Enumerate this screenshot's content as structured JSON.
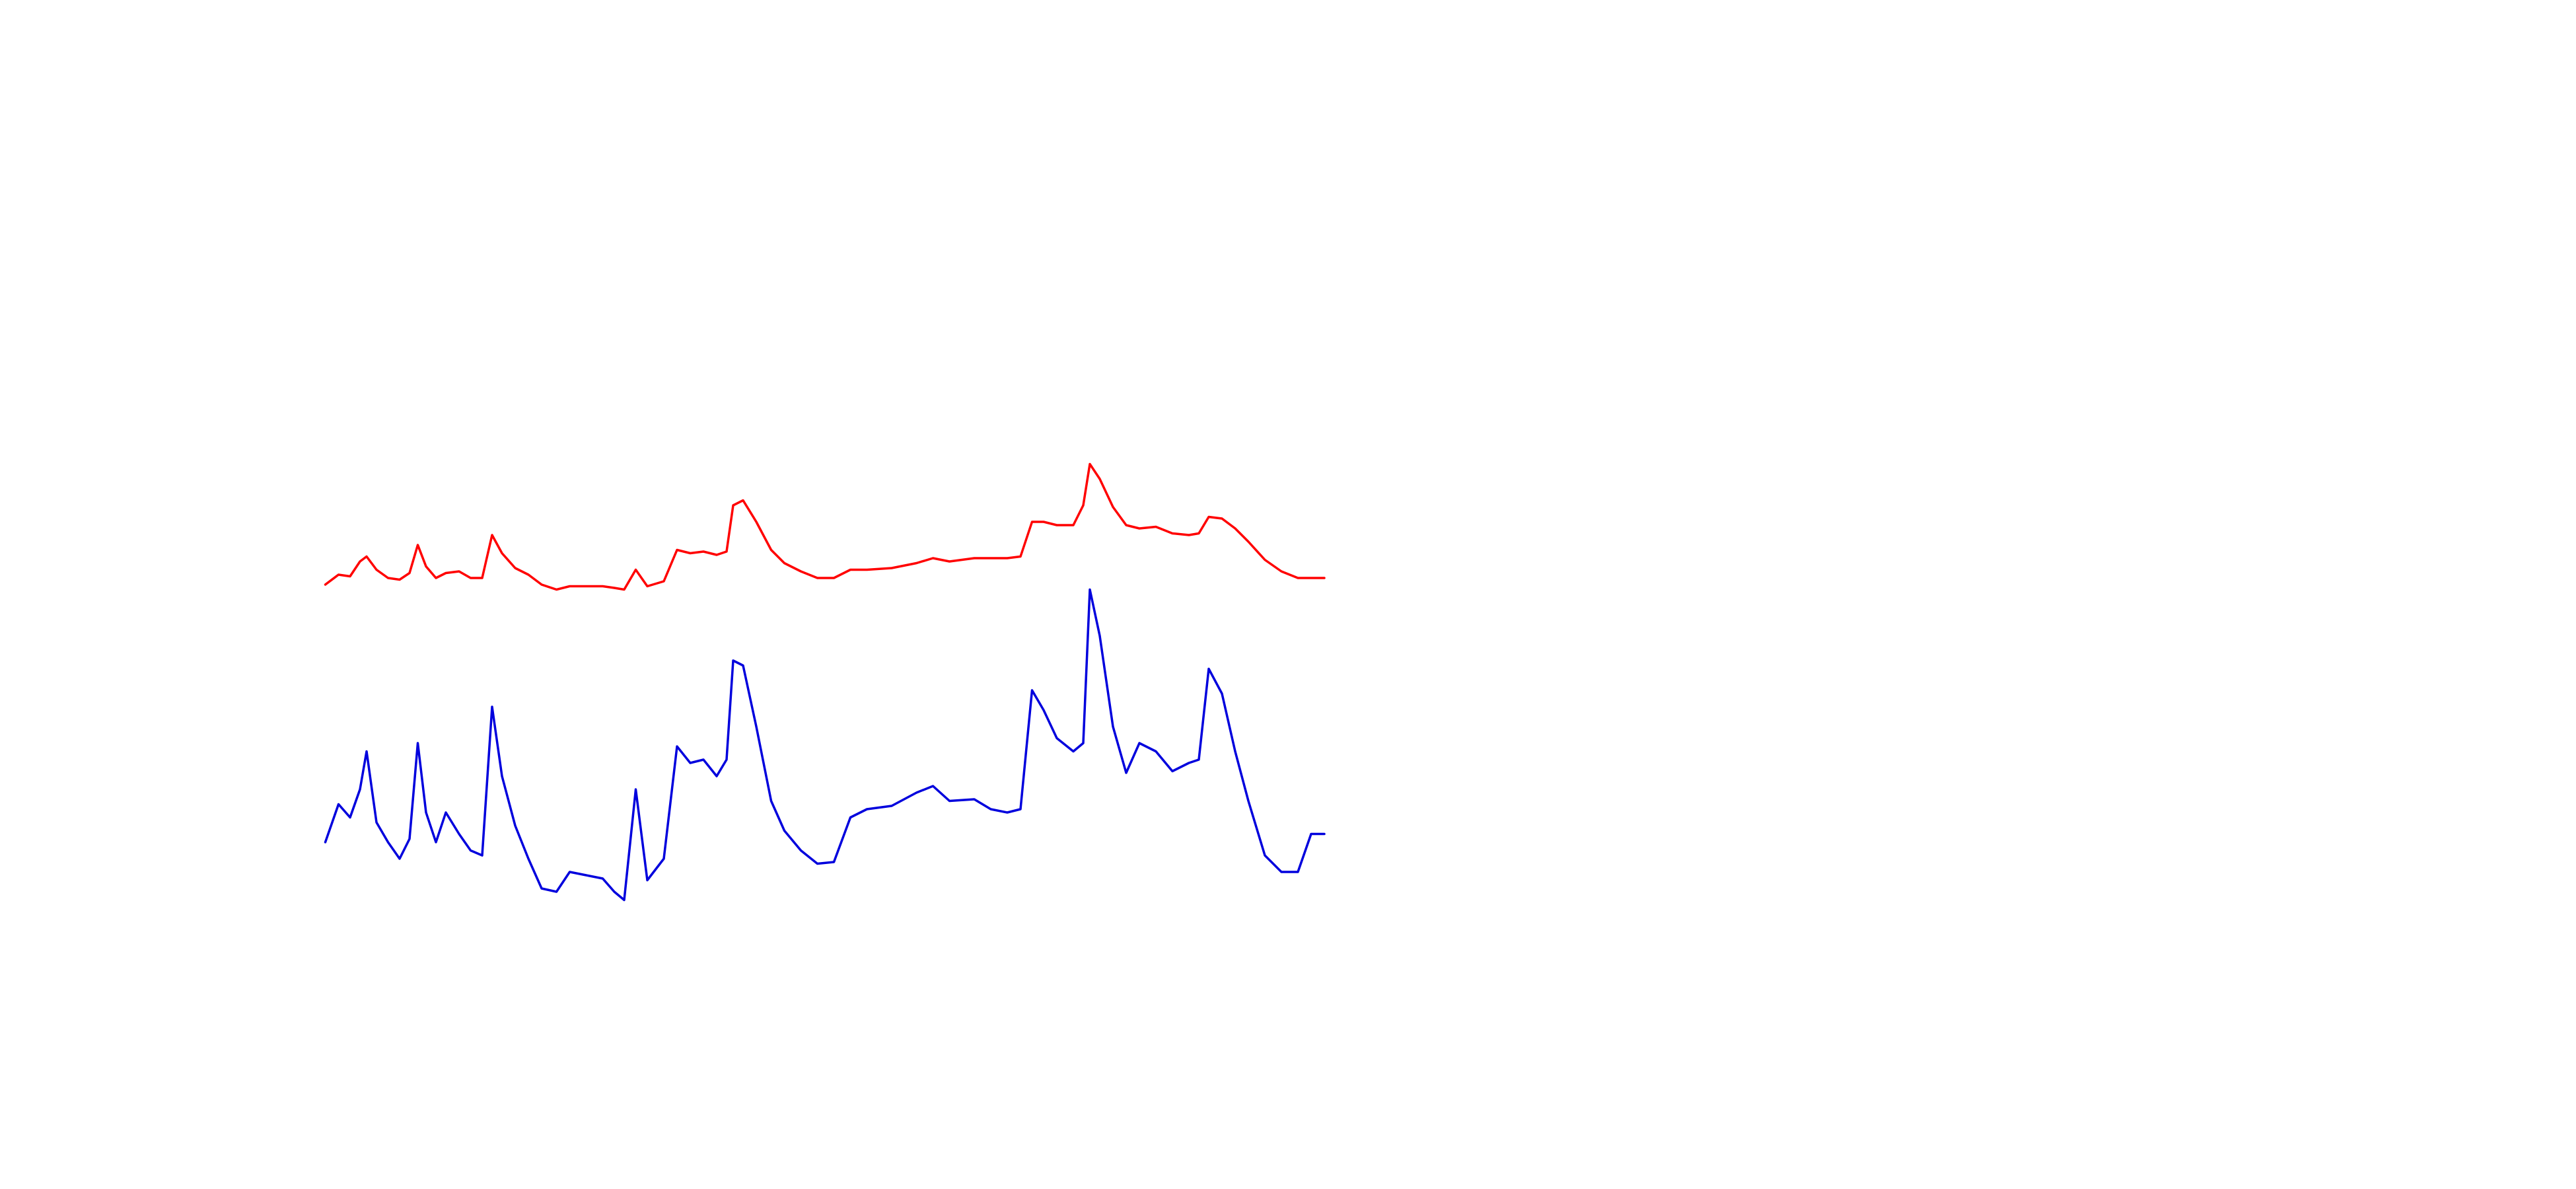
{
  "chart_data": {
    "type": "line",
    "x": [
      0,
      8,
      15,
      21,
      25,
      31,
      38,
      45,
      51,
      56,
      61,
      67,
      73,
      81,
      88,
      95,
      101,
      107,
      115,
      123,
      131,
      140,
      148,
      158,
      168,
      175,
      181,
      188,
      195,
      205,
      213,
      221,
      229,
      237,
      243,
      247,
      253,
      261,
      270,
      278,
      288,
      298,
      308,
      318,
      328,
      343,
      358,
      368,
      378,
      393,
      403,
      413,
      421,
      428,
      435,
      443,
      453,
      459,
      463,
      469,
      477,
      485,
      493,
      503,
      513,
      523,
      529,
      535,
      543,
      551,
      559,
      569,
      579,
      589,
      597,
      605
    ],
    "xlim": [
      0,
      605
    ],
    "ylim": [
      0,
      720
    ],
    "series": [
      {
        "color": "#ff0000",
        "values": [
          366,
          372,
          371,
          380,
          383,
          375,
          370,
          369,
          373,
          390,
          377,
          370,
          373,
          374,
          370,
          370,
          396,
          385,
          376,
          372,
          366,
          363,
          365,
          365,
          365,
          364,
          363,
          375,
          365,
          368,
          387,
          385,
          386,
          384,
          386,
          414,
          417,
          404,
          387,
          379,
          374,
          370,
          370,
          375,
          375,
          376,
          379,
          382,
          380,
          382,
          382,
          382,
          383,
          404,
          404,
          402,
          402,
          414,
          439,
          430,
          413,
          402,
          400,
          401,
          397,
          396,
          397,
          407,
          406,
          400,
          392,
          381,
          374,
          370,
          370,
          370
        ]
      },
      {
        "color": "#0000dd",
        "values": [
          210,
          233,
          225,
          242,
          265,
          222,
          210,
          200,
          212,
          270,
          228,
          210,
          228,
          215,
          205,
          202,
          292,
          250,
          220,
          200,
          182,
          180,
          192,
          190,
          188,
          180,
          175,
          242,
          187,
          200,
          268,
          258,
          260,
          250,
          260,
          320,
          317,
          280,
          235,
          217,
          205,
          197,
          198,
          225,
          230,
          232,
          240,
          244,
          235,
          236,
          230,
          228,
          230,
          302,
          290,
          273,
          265,
          270,
          363,
          335,
          280,
          252,
          270,
          265,
          253,
          258,
          260,
          315,
          300,
          265,
          235,
          202,
          192,
          192,
          215,
          215
        ]
      }
    ]
  }
}
